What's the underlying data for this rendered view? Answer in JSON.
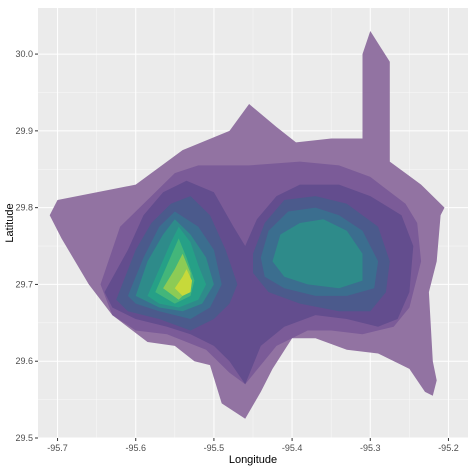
{
  "chart_data": {
    "type": "contour",
    "xlabel": "Longitude",
    "ylabel": "Latitude",
    "xlim": [
      -95.725,
      -95.175
    ],
    "ylim": [
      29.5,
      30.06
    ],
    "x_ticks": [
      -95.7,
      -95.6,
      -95.5,
      -95.4,
      -95.3,
      -95.2
    ],
    "x_tick_labels": [
      "-95.7",
      "-95.6",
      "-95.5",
      "-95.4",
      "-95.3",
      "-95.2"
    ],
    "y_ticks": [
      29.5,
      29.6,
      29.7,
      29.8,
      29.9,
      30.0
    ],
    "y_tick_labels": [
      "29.5",
      "29.6",
      "29.7",
      "29.8",
      "29.9",
      "30.0"
    ],
    "grid": true,
    "legend": "none",
    "panel_background": "#ebebeb",
    "grid_color": "#ffffff",
    "levels": [
      {
        "level": 1,
        "color": "#9273a2",
        "rings": [
          [
            [
              -95.71,
              29.79
            ],
            [
              -95.7,
              29.81
            ],
            [
              -95.6,
              29.83
            ],
            [
              -95.54,
              29.875
            ],
            [
              -95.48,
              29.9
            ],
            [
              -95.455,
              29.935
            ],
            [
              -95.42,
              29.905
            ],
            [
              -95.395,
              29.885
            ],
            [
              -95.35,
              29.89
            ],
            [
              -95.31,
              29.89
            ],
            [
              -95.31,
              30.0
            ],
            [
              -95.3,
              30.03
            ],
            [
              -95.275,
              29.99
            ],
            [
              -95.275,
              29.86
            ],
            [
              -95.255,
              29.845
            ],
            [
              -95.235,
              29.83
            ],
            [
              -95.205,
              29.8
            ],
            [
              -95.21,
              29.79
            ],
            [
              -95.215,
              29.73
            ],
            [
              -95.225,
              29.69
            ],
            [
              -95.22,
              29.6
            ],
            [
              -95.215,
              29.575
            ],
            [
              -95.22,
              29.555
            ],
            [
              -95.23,
              29.56
            ],
            [
              -95.25,
              29.59
            ],
            [
              -95.29,
              29.61
            ],
            [
              -95.33,
              29.615
            ],
            [
              -95.37,
              29.63
            ],
            [
              -95.4,
              29.63
            ],
            [
              -95.425,
              29.59
            ],
            [
              -95.44,
              29.56
            ],
            [
              -95.46,
              29.525
            ],
            [
              -95.49,
              29.545
            ],
            [
              -95.505,
              29.595
            ],
            [
              -95.525,
              29.6
            ],
            [
              -95.55,
              29.62
            ],
            [
              -95.585,
              29.625
            ],
            [
              -95.63,
              29.66
            ],
            [
              -95.66,
              29.7
            ],
            [
              -95.695,
              29.76
            ],
            [
              -95.71,
              29.79
            ]
          ]
        ]
      },
      {
        "level": 2,
        "color": "#7b5b98",
        "rings": [
          [
            [
              -95.645,
              29.7
            ],
            [
              -95.62,
              29.775
            ],
            [
              -95.58,
              29.815
            ],
            [
              -95.55,
              29.845
            ],
            [
              -95.52,
              29.855
            ],
            [
              -95.455,
              29.855
            ],
            [
              -95.39,
              29.86
            ],
            [
              -95.34,
              29.855
            ],
            [
              -95.3,
              29.84
            ],
            [
              -95.255,
              29.805
            ],
            [
              -95.24,
              29.78
            ],
            [
              -95.235,
              29.73
            ],
            [
              -95.25,
              29.67
            ],
            [
              -95.27,
              29.645
            ],
            [
              -95.31,
              29.635
            ],
            [
              -95.35,
              29.64
            ],
            [
              -95.38,
              29.64
            ],
            [
              -95.42,
              29.62
            ],
            [
              -95.44,
              29.595
            ],
            [
              -95.46,
              29.57
            ],
            [
              -95.48,
              29.585
            ],
            [
              -95.51,
              29.615
            ],
            [
              -95.56,
              29.635
            ],
            [
              -95.6,
              29.64
            ],
            [
              -95.63,
              29.66
            ],
            [
              -95.645,
              29.7
            ]
          ]
        ]
      },
      {
        "level": 3,
        "color": "#634d8e",
        "rings": [
          [
            [
              -95.64,
              29.69
            ],
            [
              -95.61,
              29.745
            ],
            [
              -95.59,
              29.79
            ],
            [
              -95.565,
              29.82
            ],
            [
              -95.535,
              29.835
            ],
            [
              -95.5,
              29.82
            ],
            [
              -95.475,
              29.775
            ],
            [
              -95.46,
              29.75
            ],
            [
              -95.445,
              29.785
            ],
            [
              -95.42,
              29.815
            ],
            [
              -95.39,
              29.83
            ],
            [
              -95.34,
              29.83
            ],
            [
              -95.3,
              29.815
            ],
            [
              -95.26,
              29.79
            ],
            [
              -95.245,
              29.75
            ],
            [
              -95.25,
              29.69
            ],
            [
              -95.265,
              29.655
            ],
            [
              -95.29,
              29.645
            ],
            [
              -95.33,
              29.655
            ],
            [
              -95.37,
              29.66
            ],
            [
              -95.41,
              29.645
            ],
            [
              -95.44,
              29.62
            ],
            [
              -95.46,
              29.57
            ],
            [
              -95.48,
              29.6
            ],
            [
              -95.5,
              29.62
            ],
            [
              -95.53,
              29.635
            ],
            [
              -95.56,
              29.645
            ],
            [
              -95.6,
              29.655
            ],
            [
              -95.63,
              29.67
            ],
            [
              -95.64,
              29.69
            ]
          ]
        ]
      },
      {
        "level": 4,
        "color": "#4b5a8c",
        "rings": [
          [
            [
              -95.625,
              29.68
            ],
            [
              -95.6,
              29.745
            ],
            [
              -95.58,
              29.78
            ],
            [
              -95.555,
              29.805
            ],
            [
              -95.53,
              29.815
            ],
            [
              -95.505,
              29.79
            ],
            [
              -95.485,
              29.745
            ],
            [
              -95.47,
              29.7
            ],
            [
              -95.48,
              29.675
            ],
            [
              -95.5,
              29.655
            ],
            [
              -95.53,
              29.64
            ],
            [
              -95.57,
              29.655
            ],
            [
              -95.61,
              29.665
            ],
            [
              -95.625,
              29.68
            ]
          ],
          [
            [
              -95.45,
              29.74
            ],
            [
              -95.435,
              29.78
            ],
            [
              -95.41,
              29.81
            ],
            [
              -95.37,
              29.815
            ],
            [
              -95.33,
              29.805
            ],
            [
              -95.29,
              29.775
            ],
            [
              -95.275,
              29.73
            ],
            [
              -95.28,
              29.69
            ],
            [
              -95.3,
              29.665
            ],
            [
              -95.34,
              29.665
            ],
            [
              -95.39,
              29.675
            ],
            [
              -95.43,
              29.69
            ],
            [
              -95.45,
              29.715
            ],
            [
              -95.45,
              29.74
            ]
          ]
        ]
      },
      {
        "level": 5,
        "color": "#3b6e8f",
        "rings": [
          [
            [
              -95.61,
              29.685
            ],
            [
              -95.59,
              29.735
            ],
            [
              -95.57,
              29.775
            ],
            [
              -95.55,
              29.795
            ],
            [
              -95.52,
              29.775
            ],
            [
              -95.5,
              29.745
            ],
            [
              -95.49,
              29.7
            ],
            [
              -95.505,
              29.67
            ],
            [
              -95.53,
              29.655
            ],
            [
              -95.57,
              29.665
            ],
            [
              -95.6,
              29.675
            ],
            [
              -95.61,
              29.685
            ]
          ],
          [
            [
              -95.44,
              29.735
            ],
            [
              -95.43,
              29.77
            ],
            [
              -95.405,
              29.795
            ],
            [
              -95.37,
              29.8
            ],
            [
              -95.34,
              29.79
            ],
            [
              -95.31,
              29.77
            ],
            [
              -95.29,
              29.73
            ],
            [
              -95.295,
              29.695
            ],
            [
              -95.33,
              29.685
            ],
            [
              -95.37,
              29.685
            ],
            [
              -95.41,
              29.695
            ],
            [
              -95.435,
              29.71
            ],
            [
              -95.44,
              29.735
            ]
          ]
        ]
      },
      {
        "level": 6,
        "color": "#2e8b8a",
        "rings": [
          [
            [
              -95.6,
              29.685
            ],
            [
              -95.585,
              29.73
            ],
            [
              -95.565,
              29.765
            ],
            [
              -95.55,
              29.785
            ],
            [
              -95.53,
              29.765
            ],
            [
              -95.51,
              29.735
            ],
            [
              -95.5,
              29.7
            ],
            [
              -95.515,
              29.675
            ],
            [
              -95.54,
              29.665
            ],
            [
              -95.57,
              29.67
            ],
            [
              -95.6,
              29.685
            ]
          ],
          [
            [
              -95.425,
              29.73
            ],
            [
              -95.415,
              29.765
            ],
            [
              -95.39,
              29.78
            ],
            [
              -95.36,
              29.785
            ],
            [
              -95.33,
              29.77
            ],
            [
              -95.31,
              29.74
            ],
            [
              -95.31,
              29.705
            ],
            [
              -95.34,
              29.695
            ],
            [
              -95.38,
              29.7
            ],
            [
              -95.41,
              29.71
            ],
            [
              -95.425,
              29.73
            ]
          ]
        ]
      },
      {
        "level": 7,
        "color": "#26a087",
        "rings": [
          [
            [
              -95.585,
              29.685
            ],
            [
              -95.57,
              29.72
            ],
            [
              -95.555,
              29.755
            ],
            [
              -95.545,
              29.775
            ],
            [
              -95.53,
              29.755
            ],
            [
              -95.52,
              29.725
            ],
            [
              -95.51,
              29.7
            ],
            [
              -95.52,
              29.68
            ],
            [
              -95.545,
              29.67
            ],
            [
              -95.57,
              29.675
            ],
            [
              -95.585,
              29.685
            ]
          ]
        ]
      },
      {
        "level": 8,
        "color": "#43b67a",
        "rings": [
          [
            [
              -95.575,
              29.69
            ],
            [
              -95.56,
              29.725
            ],
            [
              -95.545,
              29.76
            ],
            [
              -95.535,
              29.735
            ],
            [
              -95.525,
              29.705
            ],
            [
              -95.53,
              29.685
            ],
            [
              -95.55,
              29.675
            ],
            [
              -95.575,
              29.69
            ]
          ]
        ]
      },
      {
        "level": 9,
        "color": "#8ccb55",
        "rings": [
          [
            [
              -95.565,
              29.695
            ],
            [
              -95.55,
              29.72
            ],
            [
              -95.54,
              29.74
            ],
            [
              -95.53,
              29.715
            ],
            [
              -95.53,
              29.695
            ],
            [
              -95.545,
              29.68
            ],
            [
              -95.565,
              29.695
            ]
          ]
        ]
      },
      {
        "level": 10,
        "color": "#c7d93a",
        "rings": [
          [
            [
              -95.55,
              29.695
            ],
            [
              -95.54,
              29.71
            ],
            [
              -95.535,
              29.72
            ],
            [
              -95.528,
              29.705
            ],
            [
              -95.53,
              29.69
            ],
            [
              -95.54,
              29.685
            ],
            [
              -95.55,
              29.695
            ]
          ]
        ]
      }
    ]
  }
}
